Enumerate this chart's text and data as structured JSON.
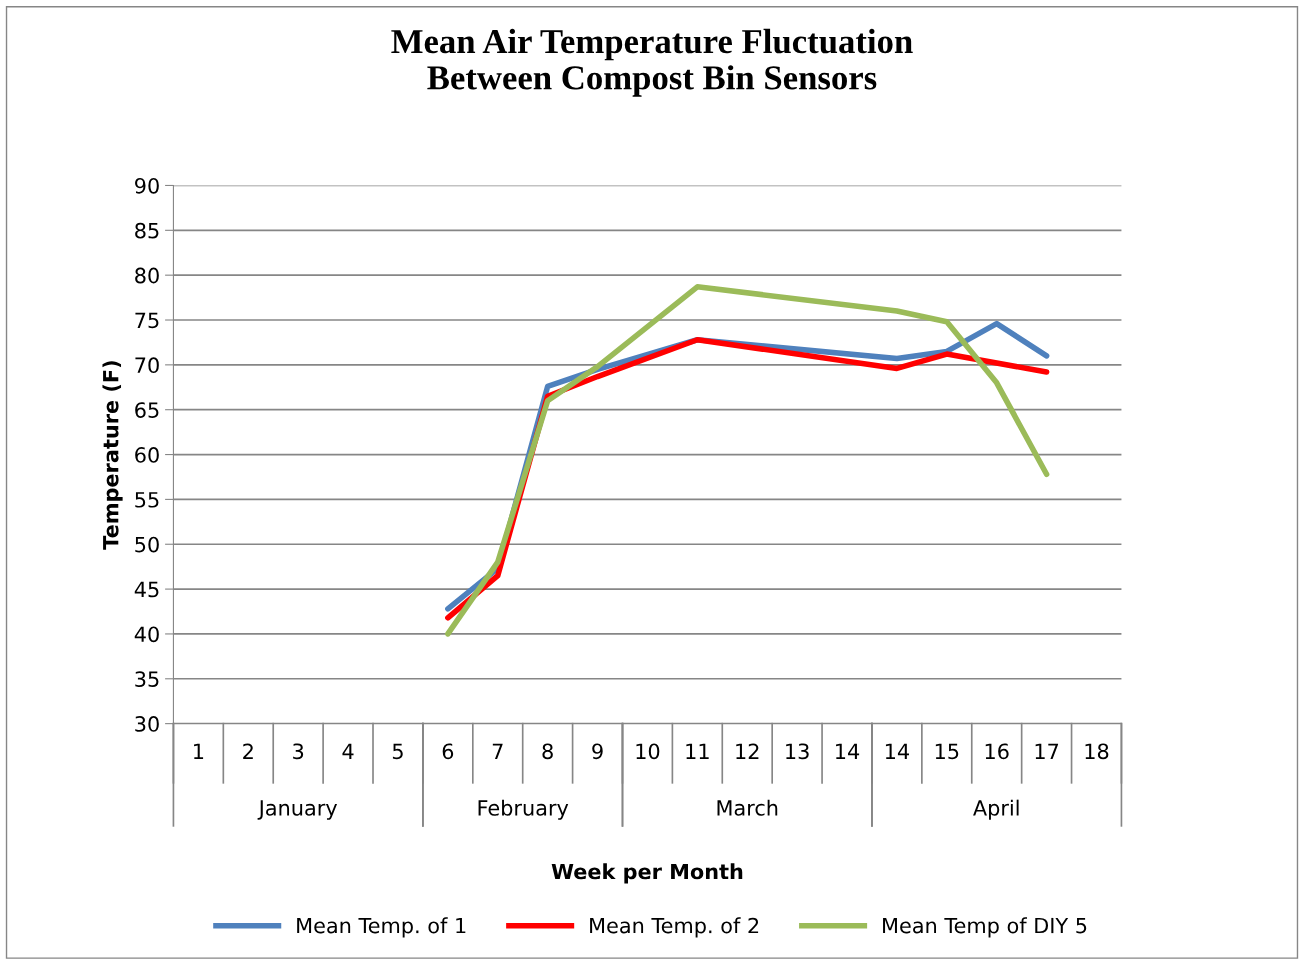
{
  "chart_data": {
    "type": "line",
    "title": "Mean Air Temperature Fluctuation\nBetween Compost Bin Sensors",
    "xlabel": "Week per Month",
    "ylabel": "Temperature (F)",
    "categories": [
      "1",
      "2",
      "3",
      "4",
      "5",
      "6",
      "7",
      "8",
      "9",
      "10",
      "11",
      "12",
      "13",
      "14",
      "14",
      "15",
      "16",
      "17",
      "18"
    ],
    "series": [
      {
        "name": "Mean Temp. of 1",
        "color": "#4f81bd",
        "values": [
          null,
          null,
          null,
          null,
          null,
          42.8,
          47.3,
          67.6,
          69.5,
          null,
          72.8,
          null,
          null,
          null,
          70.7,
          71.5,
          74.6,
          71.0,
          null
        ]
      },
      {
        "name": "Mean Temp. of 2",
        "color": "#ff0000",
        "values": [
          null,
          null,
          null,
          null,
          null,
          41.8,
          46.5,
          66.5,
          68.7,
          null,
          72.8,
          null,
          null,
          null,
          69.6,
          71.2,
          null,
          69.2,
          null
        ]
      },
      {
        "name": "Mean Temp of DIY 5",
        "color": "#9bbb59",
        "values": [
          null,
          null,
          null,
          null,
          null,
          40.0,
          48.0,
          66.0,
          69.8,
          null,
          78.7,
          null,
          null,
          null,
          76.0,
          74.8,
          68.0,
          57.8,
          null
        ]
      }
    ],
    "annotations": [
      "January",
      "February",
      "March",
      "April"
    ],
    "ylim": [
      30,
      90
    ],
    "yticks": [
      30,
      35,
      40,
      45,
      50,
      55,
      60,
      65,
      70,
      75,
      80,
      85,
      90
    ],
    "grid": "y",
    "legend": "bottom",
    "marker": "none",
    "line_style": "solid"
  }
}
